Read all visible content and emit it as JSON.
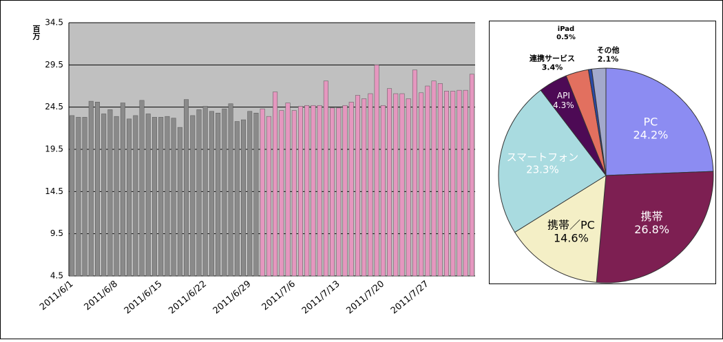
{
  "chart_data": [
    {
      "type": "bar",
      "y_label": "百万",
      "categories": [
        "2011/6/1",
        null,
        null,
        null,
        null,
        null,
        null,
        "2011/6/8",
        null,
        null,
        null,
        null,
        null,
        null,
        "2011/6/15",
        null,
        null,
        null,
        null,
        null,
        null,
        "2011/6/22",
        null,
        null,
        null,
        null,
        null,
        null,
        "2011/6/29",
        null,
        null,
        null,
        null,
        null,
        null,
        "2011/7/6",
        null,
        null,
        null,
        null,
        null,
        null,
        "2011/7/13",
        null,
        null,
        null,
        null,
        null,
        null,
        "2011/7/20",
        null,
        null,
        null,
        null,
        null,
        null,
        "2011/7/27",
        null,
        null,
        null,
        null,
        null,
        null,
        null
      ],
      "series": [
        {
          "color": "#8a8a8a",
          "values": [
            23.5,
            23.3,
            23.3,
            25.2,
            25.1,
            23.7,
            24.2,
            23.4,
            25.0,
            23.1,
            23.5,
            25.3,
            23.7,
            23.3,
            23.3,
            23.4,
            23.2,
            22.1,
            25.4,
            23.5,
            24.2,
            24.6,
            24.0,
            23.8,
            24.3,
            24.9,
            22.8,
            23.0,
            24.0,
            23.8,
            null,
            null,
            null,
            null,
            null,
            null,
            null,
            null,
            null,
            null,
            null,
            null,
            null,
            null,
            null,
            null,
            null,
            null,
            null,
            null,
            null,
            null,
            null,
            null,
            null,
            null,
            null,
            null,
            null,
            null,
            null,
            null,
            null,
            null
          ]
        },
        {
          "color": "#e597bf",
          "values": [
            null,
            null,
            null,
            null,
            null,
            null,
            null,
            null,
            null,
            null,
            null,
            null,
            null,
            null,
            null,
            null,
            null,
            null,
            null,
            null,
            null,
            null,
            null,
            null,
            null,
            null,
            null,
            null,
            null,
            null,
            24.3,
            23.4,
            26.3,
            24.1,
            25.0,
            24.1,
            24.6,
            24.7,
            24.7,
            24.7,
            27.6,
            24.4,
            24.4,
            24.7,
            25.1,
            25.9,
            25.5,
            26.1,
            29.5,
            24.7,
            26.7,
            26.1,
            26.1,
            25.5,
            28.9,
            26.2,
            27.0,
            27.6,
            27.3,
            26.4,
            26.4,
            26.5,
            26.5,
            28.4
          ]
        }
      ],
      "ylim": [
        4.5,
        34.5
      ],
      "yticks": [
        4.5,
        9.5,
        14.5,
        19.5,
        24.5,
        29.5,
        34.5
      ],
      "grid": true
    },
    {
      "type": "pie",
      "categories": [
        "PC",
        "携帯",
        "携帯／PC",
        "スマートフォン",
        "API",
        "連携サービス",
        "iPad",
        "その他"
      ],
      "values": [
        24.2,
        26.8,
        14.6,
        23.3,
        4.3,
        3.4,
        0.5,
        2.1
      ],
      "value_labels": [
        "24.2%",
        "26.8%",
        "14.6%",
        "23.3%",
        "4.3%",
        "3.4%",
        "0.5%",
        "2.1%"
      ],
      "colors": [
        "#8c8cf2",
        "#7d1f52",
        "#f4efc6",
        "#a9dbe0",
        "#4d0a55",
        "#e2705f",
        "#2b4aa8",
        "#a3a9cc"
      ]
    }
  ]
}
